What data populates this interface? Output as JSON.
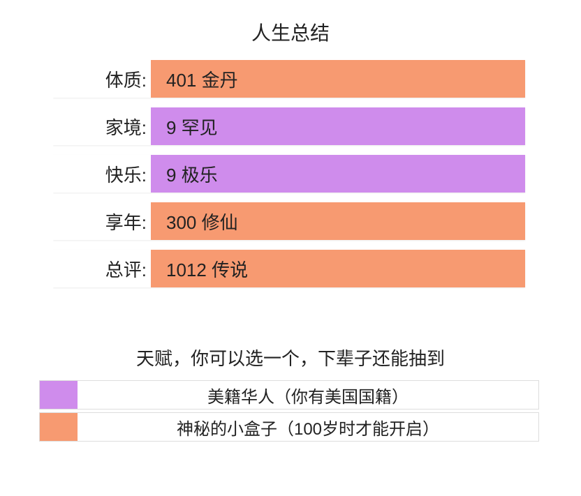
{
  "title": "人生总结",
  "colors": {
    "orange": "#f79a71",
    "purple": "#cf8cec",
    "background": "#ffffff",
    "text": "#222222"
  },
  "stats": [
    {
      "label": "体质:",
      "value": "401 金丹",
      "colorKey": "orange"
    },
    {
      "label": "家境:",
      "value": "9 罕见",
      "colorKey": "purple"
    },
    {
      "label": "快乐:",
      "value": "9 极乐",
      "colorKey": "purple"
    },
    {
      "label": "享年:",
      "value": "300 修仙",
      "colorKey": "orange"
    },
    {
      "label": "总评:",
      "value": "1012 传说",
      "colorKey": "orange"
    }
  ],
  "talent_caption": "天赋，你可以选一个，下辈子还能抽到",
  "talents": [
    {
      "swatchColorKey": "purple",
      "text": "美籍华人（你有美国国籍）"
    },
    {
      "swatchColorKey": "orange",
      "text": "神秘的小盒子（100岁时才能开启）"
    }
  ]
}
